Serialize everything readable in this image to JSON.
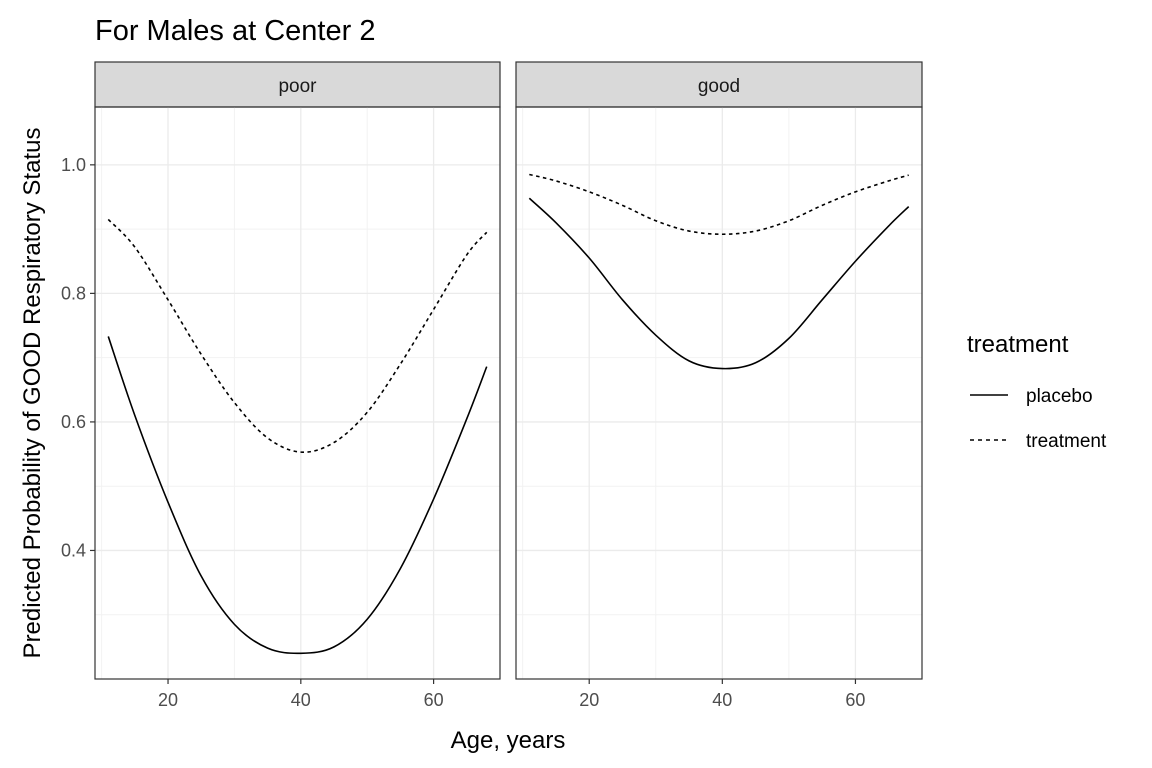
{
  "chart_data": {
    "type": "line",
    "title": "For Males at Center 2",
    "xlabel": "Age, years",
    "ylabel": "Predicted Probability of GOOD Respiratory Status",
    "xlim": [
      9,
      70
    ],
    "ylim": [
      0.2,
      1.09
    ],
    "x_ticks": [
      20,
      40,
      60
    ],
    "y_ticks": [
      0.4,
      0.6,
      0.8,
      1.0
    ],
    "x_tick_labels": [
      "20",
      "40",
      "60"
    ],
    "y_tick_labels": [
      "0.4",
      "0.6",
      "0.8",
      "1.0"
    ],
    "grid": true,
    "legend": {
      "title": "treatment",
      "position": "right",
      "entries": [
        {
          "label": "placebo",
          "linetype": "solid"
        },
        {
          "label": "treatment",
          "linetype": "dashed"
        }
      ]
    },
    "panels": [
      {
        "strip": "poor",
        "series": [
          {
            "name": "placebo",
            "linetype": "solid",
            "x": [
              11,
              15,
              20,
              25,
              30,
              35,
              40,
              45,
              50,
              55,
              60,
              65,
              68
            ],
            "y": [
              0.733,
              0.61,
              0.475,
              0.36,
              0.285,
              0.248,
              0.24,
              0.25,
              0.293,
              0.372,
              0.48,
              0.605,
              0.686
            ]
          },
          {
            "name": "treatment",
            "linetype": "dashed",
            "x": [
              11,
              15,
              20,
              25,
              30,
              35,
              40,
              45,
              50,
              55,
              60,
              65,
              68
            ],
            "y": [
              0.915,
              0.872,
              0.79,
              0.705,
              0.63,
              0.575,
              0.553,
              0.568,
              0.615,
              0.69,
              0.775,
              0.86,
              0.895
            ]
          }
        ]
      },
      {
        "strip": "good",
        "series": [
          {
            "name": "placebo",
            "linetype": "solid",
            "x": [
              11,
              15,
              20,
              25,
              30,
              35,
              40,
              45,
              50,
              55,
              60,
              65,
              68
            ],
            "y": [
              0.948,
              0.91,
              0.855,
              0.79,
              0.735,
              0.695,
              0.683,
              0.692,
              0.73,
              0.79,
              0.85,
              0.905,
              0.935
            ]
          },
          {
            "name": "treatment",
            "linetype": "dashed",
            "x": [
              11,
              15,
              20,
              25,
              30,
              35,
              40,
              45,
              50,
              55,
              60,
              65,
              68
            ],
            "y": [
              0.985,
              0.975,
              0.958,
              0.937,
              0.913,
              0.897,
              0.892,
              0.897,
              0.913,
              0.937,
              0.958,
              0.975,
              0.984
            ]
          }
        ]
      }
    ]
  }
}
